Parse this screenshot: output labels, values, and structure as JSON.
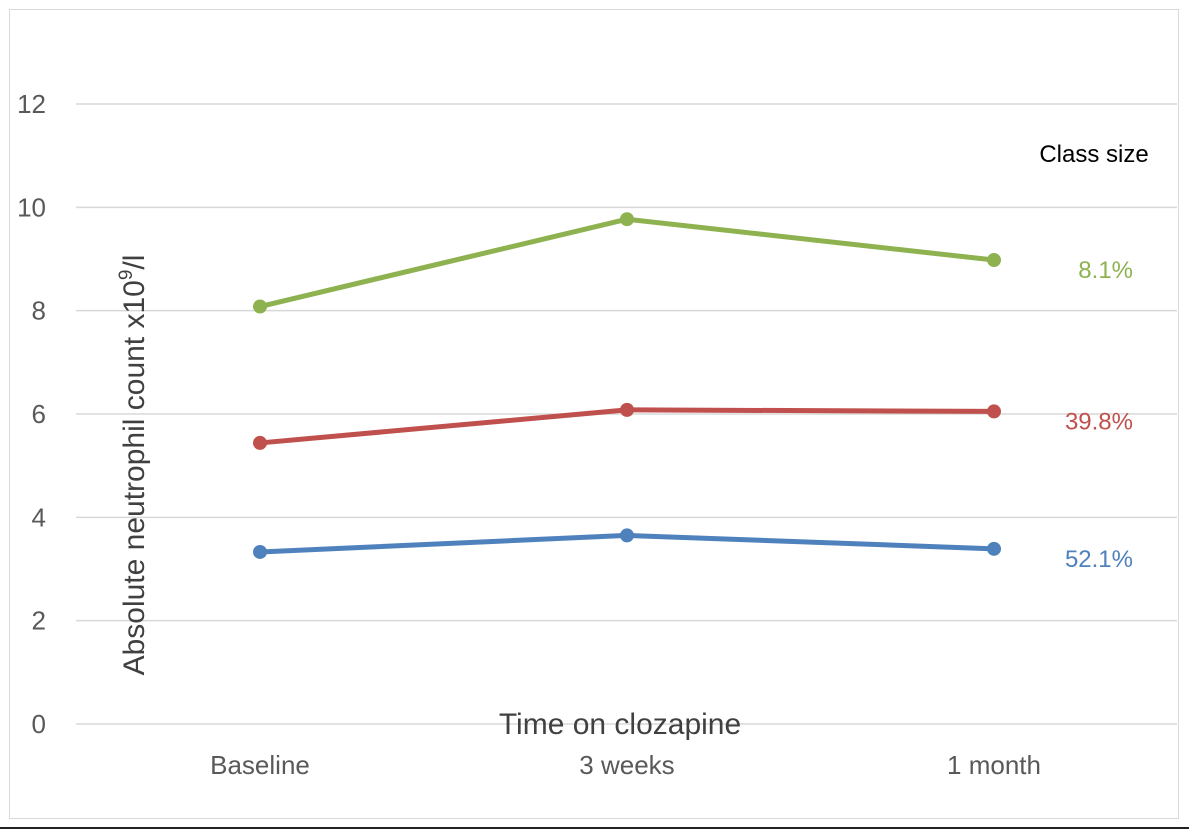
{
  "chart_data": {
    "type": "line",
    "xlabel": "Time on clozapine",
    "ylabel": "Absolute neutrophil count x10",
    "ylabel_superscript": "9",
    "ylabel_suffix": "/l",
    "categories": [
      "Baseline",
      "3 weeks",
      "1 month"
    ],
    "ylim": [
      0,
      12
    ],
    "yticks": [
      0,
      2,
      4,
      6,
      8,
      10,
      12
    ],
    "grid": true,
    "legend_title": "Class size",
    "legend_placement": "right",
    "series": [
      {
        "label": "8.1%",
        "color": "#8db24f",
        "values": [
          8.08,
          9.77,
          8.98
        ]
      },
      {
        "label": "39.8%",
        "color": "#c0504d",
        "values": [
          5.44,
          6.08,
          6.05
        ]
      },
      {
        "label": "52.1%",
        "color": "#4f81bd",
        "values": [
          3.33,
          3.65,
          3.39
        ]
      }
    ]
  }
}
